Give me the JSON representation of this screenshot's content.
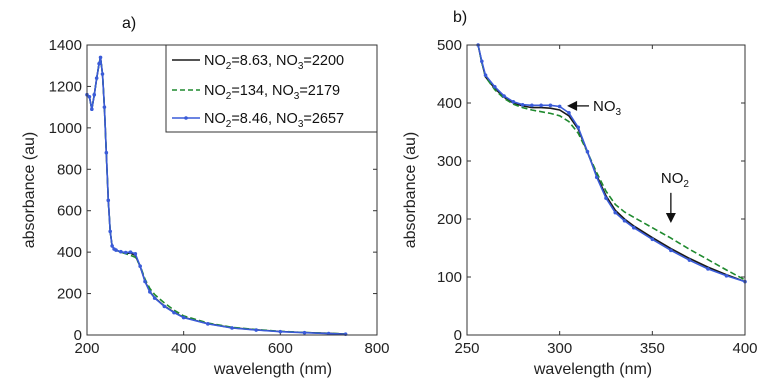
{
  "colors": {
    "black": "#1a1a1a",
    "green": "#1f8a2e",
    "blue": "#3a5bd8"
  },
  "chart_data": [
    {
      "panel_label": "a)",
      "type": "line",
      "xlabel": "wavelength (nm)",
      "ylabel": "absorbance (au)",
      "xlim": [
        200,
        800
      ],
      "ylim": [
        0,
        1400
      ],
      "xticks": [
        "200",
        "400",
        "600",
        "800"
      ],
      "yticks": [
        "0",
        "200",
        "400",
        "600",
        "800",
        "1000",
        "1200",
        "1400"
      ],
      "legend_position": "top-right",
      "series": [
        {
          "name": "NO2=8.63, NO3=2200",
          "name_parts": {
            "a": "NO",
            "a_sub": "2",
            "b": "=8.63, NO",
            "b_sub": "3",
            "c": "=2200"
          },
          "color": "#1a1a1a",
          "style": "solid",
          "x": [
            200,
            205,
            210,
            215,
            220,
            225,
            228,
            232,
            236,
            240,
            244,
            248,
            252,
            256,
            260,
            270,
            280,
            290,
            300,
            310,
            320,
            330,
            340,
            360,
            380,
            400,
            450,
            500,
            550,
            600,
            650,
            700,
            735
          ],
          "y": [
            1160,
            1150,
            1090,
            1160,
            1240,
            1310,
            1340,
            1260,
            1100,
            880,
            650,
            500,
            430,
            415,
            410,
            400,
            395,
            395,
            385,
            330,
            260,
            210,
            180,
            140,
            110,
            85,
            55,
            35,
            25,
            17,
            12,
            8,
            5
          ]
        },
        {
          "name": "NO2=134, NO3=2179",
          "name_parts": {
            "a": "NO",
            "a_sub": "2",
            "b": "=134, NO",
            "b_sub": "3",
            "c": "=2179"
          },
          "color": "#1f8a2e",
          "style": "dashed",
          "x": [
            200,
            205,
            210,
            215,
            220,
            225,
            228,
            232,
            236,
            240,
            244,
            248,
            252,
            256,
            260,
            270,
            280,
            290,
            300,
            310,
            320,
            330,
            340,
            360,
            380,
            400,
            450,
            500,
            550,
            600,
            650,
            700,
            735
          ],
          "y": [
            1160,
            1150,
            1090,
            1160,
            1240,
            1310,
            1340,
            1260,
            1100,
            880,
            650,
            500,
            430,
            415,
            410,
            400,
            392,
            385,
            375,
            335,
            270,
            225,
            195,
            155,
            120,
            92,
            58,
            37,
            26,
            18,
            12,
            8,
            5
          ]
        },
        {
          "name": "NO2=8.46, NO3=2657",
          "name_parts": {
            "a": "NO",
            "a_sub": "2",
            "b": "=8.46, NO",
            "b_sub": "3",
            "c": "=2657"
          },
          "color": "#3a5bd8",
          "style": "solid-markers",
          "x": [
            200,
            205,
            210,
            215,
            220,
            225,
            228,
            232,
            236,
            240,
            244,
            248,
            252,
            256,
            260,
            270,
            280,
            290,
            300,
            310,
            320,
            330,
            340,
            360,
            380,
            400,
            450,
            500,
            550,
            600,
            650,
            700,
            735
          ],
          "y": [
            1160,
            1150,
            1090,
            1160,
            1240,
            1310,
            1340,
            1260,
            1100,
            880,
            650,
            500,
            430,
            415,
            410,
            402,
            398,
            400,
            392,
            332,
            258,
            208,
            178,
            138,
            108,
            84,
            54,
            34,
            24,
            16,
            11,
            7,
            4
          ]
        }
      ]
    },
    {
      "panel_label": "b)",
      "type": "line",
      "xlabel": "wavelength (nm)",
      "ylabel": "absorbance (au)",
      "xlim": [
        250,
        400
      ],
      "ylim": [
        0,
        500
      ],
      "xticks": [
        "250",
        "300",
        "350",
        "400"
      ],
      "yticks": [
        "0",
        "100",
        "200",
        "300",
        "400",
        "500"
      ],
      "annotations": [
        {
          "text": "NO",
          "sub": "3",
          "x": 318,
          "y": 395,
          "arrow_to": [
            304,
            395
          ]
        },
        {
          "text": "NO",
          "sub": "2",
          "x": 360,
          "y": 252,
          "arrow_to": [
            360,
            193
          ]
        }
      ],
      "series": [
        {
          "name": "NO2=8.63, NO3=2200",
          "color": "#1a1a1a",
          "style": "solid",
          "x": [
            256,
            258,
            260,
            265,
            270,
            275,
            280,
            285,
            290,
            295,
            300,
            305,
            310,
            315,
            320,
            325,
            330,
            335,
            340,
            350,
            360,
            370,
            380,
            390,
            400
          ],
          "y": [
            500,
            470,
            445,
            425,
            410,
            400,
            395,
            392,
            392,
            391,
            388,
            378,
            355,
            315,
            275,
            240,
            215,
            200,
            188,
            168,
            149,
            132,
            117,
            104,
            92
          ]
        },
        {
          "name": "NO2=134, NO3=2179",
          "color": "#1f8a2e",
          "style": "dashed",
          "x": [
            256,
            258,
            260,
            265,
            270,
            275,
            280,
            285,
            290,
            295,
            300,
            305,
            310,
            315,
            320,
            325,
            330,
            335,
            340,
            350,
            360,
            370,
            380,
            390,
            400
          ],
          "y": [
            500,
            470,
            445,
            423,
            408,
            398,
            392,
            388,
            385,
            382,
            378,
            368,
            348,
            315,
            280,
            248,
            225,
            212,
            203,
            185,
            167,
            148,
            130,
            112,
            95
          ]
        },
        {
          "name": "NO2=8.46, NO3=2657",
          "color": "#3a5bd8",
          "style": "solid-markers",
          "x": [
            256,
            258,
            260,
            265,
            270,
            275,
            280,
            285,
            290,
            295,
            300,
            305,
            310,
            315,
            320,
            325,
            330,
            335,
            340,
            350,
            360,
            370,
            380,
            390,
            400
          ],
          "y": [
            500,
            472,
            448,
            428,
            412,
            402,
            397,
            396,
            396,
            396,
            394,
            383,
            358,
            316,
            272,
            236,
            211,
            197,
            185,
            165,
            146,
            129,
            114,
            102,
            92
          ]
        }
      ]
    }
  ]
}
